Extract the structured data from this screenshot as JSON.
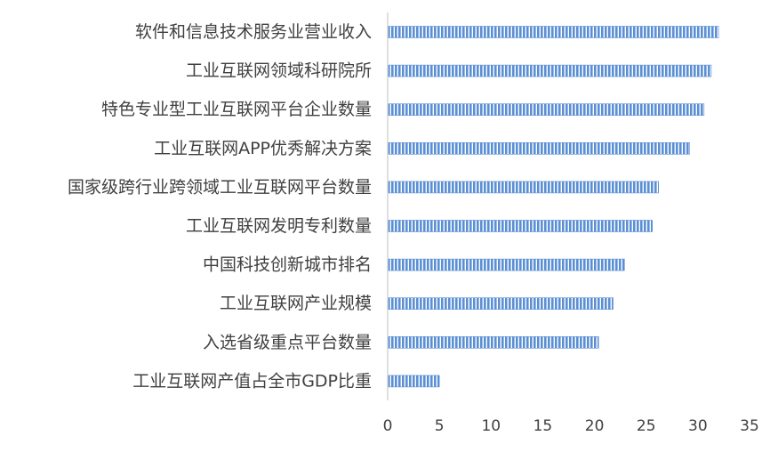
{
  "chart_data": {
    "type": "bar",
    "orientation": "horizontal",
    "categories": [
      "软件和信息技术服务业营业收入",
      "工业互联网领域科研院所",
      "特色专业型工业互联网平台企业数量",
      "工业互联网APP优秀解决方案",
      "国家级跨行业跨领域工业互联网平台数量",
      "工业互联网发明专利数量",
      "中国科技创新城市排名",
      "工业互联网产业规模",
      "入选省级重点平台数量",
      "工业互联网产值占全市GDP比重"
    ],
    "values": [
      32,
      31.3,
      30.6,
      29.2,
      26.2,
      25.6,
      22.9,
      21.8,
      20.4,
      5.0
    ],
    "xlim": [
      0,
      35
    ],
    "xticks": [
      "0",
      "5",
      "10",
      "15",
      "20",
      "25",
      "30",
      "35"
    ],
    "title": "",
    "xlabel": "",
    "ylabel": "",
    "grid": false,
    "legend": "none",
    "bar_color": "#5b8fd4",
    "bar_stripe_color": "#ffffff"
  }
}
